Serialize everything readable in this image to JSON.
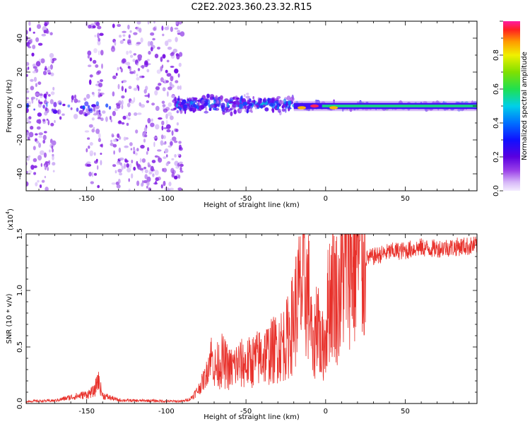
{
  "title": "C2E2.2023.360.23.32.R15",
  "colors": {
    "snr_line": "#e8302a",
    "colormap": [
      "#f8f0ff",
      "#c9a8f5",
      "#8a2be2",
      "#6a00e8",
      "#2a1cff",
      "#0b5cff",
      "#00c8e0",
      "#2ad94c",
      "#7de000",
      "#f0f000",
      "#ff9a00",
      "#ff2a2a",
      "#ff1aa8"
    ]
  },
  "chart_data": [
    {
      "type": "heatmap",
      "name": "spectrogram",
      "xlabel": "Height of straight line (km)",
      "ylabel": "Frequency (Hz)",
      "xlim": [
        -188,
        95
      ],
      "ylim": [
        -50,
        50
      ],
      "xticks": [
        "-150",
        "-100",
        "-50",
        "0",
        "50"
      ],
      "xtick_values": [
        -150,
        -100,
        -50,
        0,
        50
      ],
      "yticks": [
        "-40",
        "-20",
        "0",
        "20",
        "40"
      ],
      "ytick_values": [
        -40,
        -20,
        0,
        20,
        40
      ],
      "colorbar": {
        "label": "Normalized spectral amplitude",
        "range": [
          0,
          1
        ],
        "ticks": [
          "0.0",
          "0.2",
          "0.4",
          "0.6",
          "0.8"
        ],
        "tick_values": [
          0,
          0.2,
          0.4,
          0.6,
          0.8
        ]
      },
      "regions": [
        {
          "x_range": [
            -188,
            -170
          ],
          "freq_range": [
            -50,
            50
          ],
          "amplitude": 0.15,
          "description": "scattered noise"
        },
        {
          "x_range": [
            -150,
            -140
          ],
          "freq_range": [
            -50,
            50
          ],
          "amplitude": 0.15,
          "description": "scattered noise"
        },
        {
          "x_range": [
            -135,
            -90
          ],
          "freq_range": [
            -50,
            50
          ],
          "amplitude": 0.15,
          "description": "scattered noise"
        },
        {
          "x_range": [
            -188,
            -135
          ],
          "freq_range": [
            -8,
            8
          ],
          "amplitude": 0.3,
          "description": "band around 0 Hz"
        },
        {
          "x_range": [
            -95,
            -20
          ],
          "freq_range": [
            -6,
            8
          ],
          "amplitude": 0.35,
          "description": "band around 0 Hz"
        },
        {
          "x_range": [
            -20,
            95
          ],
          "freq_range": [
            -3,
            3
          ],
          "amplitude": 0.5,
          "description": "narrow band at 0 Hz"
        }
      ],
      "peaks": [
        {
          "x": -7,
          "freq": 0,
          "amplitude": 1.0
        },
        {
          "x": -15,
          "freq": -1,
          "amplitude": 0.85
        },
        {
          "x": 5,
          "freq": -1,
          "amplitude": 0.85
        }
      ]
    },
    {
      "type": "line",
      "name": "snr",
      "xlabel": "Height of straight line (km)",
      "ylabel": "SNR (10 * v/v)",
      "y_multiplier": "(x10^4)",
      "y_multiplier_base": "(x10",
      "y_multiplier_exp": "4",
      "y_multiplier_close": ")",
      "xlim": [
        -188,
        95
      ],
      "ylim": [
        0,
        15000
      ],
      "xticks": [
        "-150",
        "-100",
        "-50",
        "0",
        "50"
      ],
      "xtick_values": [
        -150,
        -100,
        -50,
        0,
        50
      ],
      "yticks": [
        "0.0",
        "0.5",
        "1.0",
        "1.5"
      ],
      "ytick_values": [
        0,
        5000,
        10000,
        15000
      ],
      "x": [
        -188,
        -170,
        -160,
        -150,
        -145,
        -143,
        -140,
        -130,
        -120,
        -110,
        -100,
        -90,
        -85,
        -80,
        -75,
        -72,
        -70,
        -65,
        -60,
        -55,
        -50,
        -45,
        -40,
        -35,
        -30,
        -25,
        -22,
        -20,
        -18,
        -15,
        -12,
        -10,
        -8,
        -5,
        -3,
        0,
        2,
        5,
        8,
        10,
        12,
        15,
        17,
        20,
        22,
        25,
        30,
        35,
        40,
        45,
        50,
        55,
        60,
        65,
        70,
        75,
        80,
        85,
        90,
        95
      ],
      "values": [
        200,
        250,
        550,
        800,
        1100,
        2200,
        700,
        300,
        250,
        250,
        200,
        200,
        400,
        1200,
        2500,
        4500,
        3000,
        3800,
        3000,
        3500,
        3500,
        3800,
        4200,
        4500,
        5000,
        5500,
        6500,
        7500,
        9000,
        10000,
        10200,
        9000,
        4000,
        8500,
        4500,
        6000,
        9500,
        10500,
        9000,
        11000,
        12500,
        13500,
        12000,
        14000,
        12500,
        12800,
        13000,
        13200,
        13400,
        13500,
        13500,
        13700,
        13800,
        13700,
        13700,
        13800,
        13800,
        13900,
        13900,
        14000
      ]
    }
  ]
}
